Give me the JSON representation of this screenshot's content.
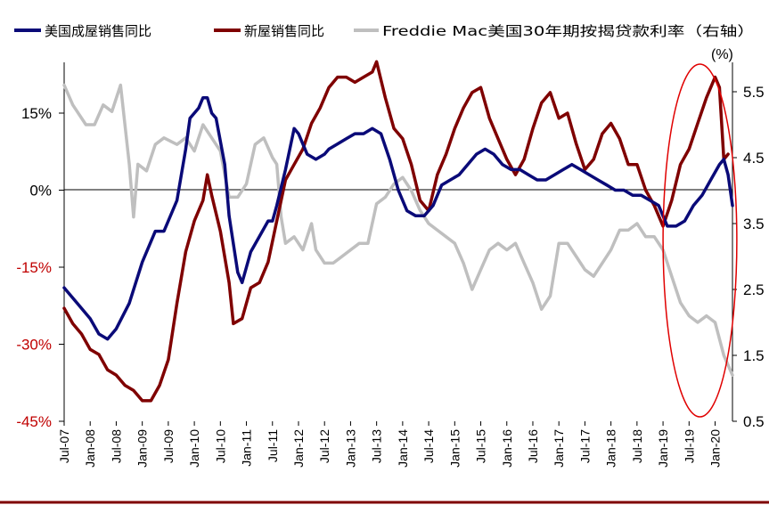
{
  "chart_data": {
    "type": "line",
    "title": "",
    "left_axis": {
      "unit": "",
      "ticks": [
        "15%",
        "0%",
        "-15%",
        "-30%",
        "-45%"
      ],
      "values": [
        15,
        0,
        -15,
        -30,
        -45
      ],
      "ylim": [
        -45,
        15
      ],
      "tick_color": "#c00000"
    },
    "right_axis": {
      "unit": "(%)",
      "ticks": [
        "5.5",
        "4.5",
        "3.5",
        "2.5",
        "1.5",
        "0.5"
      ],
      "values": [
        5.5,
        4.5,
        3.5,
        2.5,
        1.5,
        0.5
      ],
      "ylim": [
        0.5,
        5.5
      ]
    },
    "x_ticks": [
      "Jul-07",
      "Jan-08",
      "Jul-08",
      "Jan-09",
      "Jul-09",
      "Jan-10",
      "Jul-10",
      "Jan-11",
      "Jul-11",
      "Jan-12",
      "Jul-12",
      "Jan-13",
      "Jul-13",
      "Jan-14",
      "Jul-14",
      "Jan-15",
      "Jul-15",
      "Jan-16",
      "Jul-16",
      "Jan-17",
      "Jul-17",
      "Jan-18",
      "Jul-18",
      "Jan-19",
      "Jul-19",
      "Jan-20"
    ],
    "x_start": "2007-07",
    "x_end": "2020-05",
    "grid": false,
    "legend_position": "top",
    "series": [
      {
        "name": "美国成屋销售同比",
        "axis": "left",
        "color": "#0a0a78",
        "values": [
          [
            "2007-07",
            -19
          ],
          [
            "2007-10",
            -22
          ],
          [
            "2008-01",
            -25
          ],
          [
            "2008-03",
            -28
          ],
          [
            "2008-05",
            -29
          ],
          [
            "2008-07",
            -27
          ],
          [
            "2008-10",
            -22
          ],
          [
            "2009-01",
            -14
          ],
          [
            "2009-04",
            -8
          ],
          [
            "2009-06",
            -8
          ],
          [
            "2009-09",
            -2
          ],
          [
            "2009-11",
            8
          ],
          [
            "2009-12",
            14
          ],
          [
            "2010-02",
            16
          ],
          [
            "2010-03",
            18
          ],
          [
            "2010-04",
            18
          ],
          [
            "2010-05",
            15
          ],
          [
            "2010-06",
            14
          ],
          [
            "2010-08",
            5
          ],
          [
            "2010-09",
            -5
          ],
          [
            "2010-11",
            -16
          ],
          [
            "2010-12",
            -18
          ],
          [
            "2011-02",
            -12
          ],
          [
            "2011-04",
            -9
          ],
          [
            "2011-06",
            -6
          ],
          [
            "2011-07",
            -6
          ],
          [
            "2011-08",
            -3
          ],
          [
            "2011-10",
            4
          ],
          [
            "2011-12",
            12
          ],
          [
            "2012-01",
            11
          ],
          [
            "2012-03",
            7
          ],
          [
            "2012-05",
            6
          ],
          [
            "2012-07",
            7
          ],
          [
            "2012-08",
            8
          ],
          [
            "2012-10",
            9
          ],
          [
            "2012-12",
            10
          ],
          [
            "2013-02",
            11
          ],
          [
            "2013-04",
            11
          ],
          [
            "2013-06",
            12
          ],
          [
            "2013-08",
            11
          ],
          [
            "2013-10",
            6
          ],
          [
            "2013-12",
            0
          ],
          [
            "2014-02",
            -4
          ],
          [
            "2014-04",
            -5
          ],
          [
            "2014-06",
            -5
          ],
          [
            "2014-08",
            -3
          ],
          [
            "2014-10",
            1
          ],
          [
            "2014-12",
            2
          ],
          [
            "2015-02",
            3
          ],
          [
            "2015-04",
            5
          ],
          [
            "2015-06",
            7
          ],
          [
            "2015-08",
            8
          ],
          [
            "2015-10",
            7
          ],
          [
            "2015-12",
            5
          ],
          [
            "2016-02",
            4
          ],
          [
            "2016-04",
            4
          ],
          [
            "2016-06",
            3
          ],
          [
            "2016-08",
            2
          ],
          [
            "2016-10",
            2
          ],
          [
            "2016-12",
            3
          ],
          [
            "2017-02",
            4
          ],
          [
            "2017-04",
            5
          ],
          [
            "2017-06",
            4
          ],
          [
            "2017-08",
            3
          ],
          [
            "2017-10",
            2
          ],
          [
            "2017-12",
            1
          ],
          [
            "2018-02",
            0
          ],
          [
            "2018-04",
            0
          ],
          [
            "2018-06",
            -1
          ],
          [
            "2018-08",
            -1
          ],
          [
            "2018-10",
            -2
          ],
          [
            "2018-12",
            -3
          ],
          [
            "2019-02",
            -7
          ],
          [
            "2019-04",
            -7
          ],
          [
            "2019-06",
            -6
          ],
          [
            "2019-08",
            -3
          ],
          [
            "2019-10",
            -1
          ],
          [
            "2019-12",
            2
          ],
          [
            "2020-02",
            5
          ],
          [
            "2020-03",
            6
          ],
          [
            "2020-04",
            3
          ],
          [
            "2020-05",
            -3
          ]
        ]
      },
      {
        "name": "新屋销售同比",
        "axis": "left",
        "color": "#7f0000",
        "values": [
          [
            "2007-07",
            -23
          ],
          [
            "2007-09",
            -26
          ],
          [
            "2007-11",
            -28
          ],
          [
            "2008-01",
            -31
          ],
          [
            "2008-03",
            -32
          ],
          [
            "2008-05",
            -35
          ],
          [
            "2008-07",
            -36
          ],
          [
            "2008-09",
            -38
          ],
          [
            "2008-11",
            -39
          ],
          [
            "2009-01",
            -41
          ],
          [
            "2009-03",
            -41
          ],
          [
            "2009-05",
            -38
          ],
          [
            "2009-07",
            -33
          ],
          [
            "2009-09",
            -22
          ],
          [
            "2009-11",
            -12
          ],
          [
            "2010-01",
            -6
          ],
          [
            "2010-03",
            -2
          ],
          [
            "2010-04",
            3
          ],
          [
            "2010-05",
            -1
          ],
          [
            "2010-07",
            -8
          ],
          [
            "2010-09",
            -18
          ],
          [
            "2010-10",
            -26
          ],
          [
            "2010-12",
            -25
          ],
          [
            "2011-02",
            -19
          ],
          [
            "2011-04",
            -18
          ],
          [
            "2011-06",
            -14
          ],
          [
            "2011-08",
            -6
          ],
          [
            "2011-10",
            2
          ],
          [
            "2011-12",
            5
          ],
          [
            "2012-02",
            8
          ],
          [
            "2012-04",
            13
          ],
          [
            "2012-06",
            16
          ],
          [
            "2012-08",
            20
          ],
          [
            "2012-10",
            22
          ],
          [
            "2012-12",
            22
          ],
          [
            "2013-02",
            21
          ],
          [
            "2013-04",
            22
          ],
          [
            "2013-06",
            23
          ],
          [
            "2013-07",
            25
          ],
          [
            "2013-09",
            18
          ],
          [
            "2013-11",
            12
          ],
          [
            "2014-01",
            10
          ],
          [
            "2014-03",
            5
          ],
          [
            "2014-05",
            -2
          ],
          [
            "2014-07",
            -4
          ],
          [
            "2014-09",
            3
          ],
          [
            "2014-11",
            7
          ],
          [
            "2015-01",
            12
          ],
          [
            "2015-03",
            16
          ],
          [
            "2015-05",
            19
          ],
          [
            "2015-07",
            20
          ],
          [
            "2015-09",
            14
          ],
          [
            "2015-11",
            10
          ],
          [
            "2016-01",
            6
          ],
          [
            "2016-03",
            3
          ],
          [
            "2016-05",
            6
          ],
          [
            "2016-07",
            12
          ],
          [
            "2016-09",
            17
          ],
          [
            "2016-11",
            19
          ],
          [
            "2017-01",
            14
          ],
          [
            "2017-03",
            15
          ],
          [
            "2017-05",
            9
          ],
          [
            "2017-07",
            4
          ],
          [
            "2017-09",
            6
          ],
          [
            "2017-11",
            11
          ],
          [
            "2018-01",
            13
          ],
          [
            "2018-03",
            10
          ],
          [
            "2018-05",
            5
          ],
          [
            "2018-07",
            5
          ],
          [
            "2018-09",
            0
          ],
          [
            "2018-11",
            -3
          ],
          [
            "2019-01",
            -7
          ],
          [
            "2019-03",
            -2
          ],
          [
            "2019-05",
            5
          ],
          [
            "2019-07",
            8
          ],
          [
            "2019-09",
            13
          ],
          [
            "2019-11",
            18
          ],
          [
            "2020-01",
            22
          ],
          [
            "2020-02",
            20
          ],
          [
            "2020-03",
            6
          ],
          [
            "2020-04",
            7
          ]
        ]
      },
      {
        "name": "Freddie Mac美国30年期按揭贷款利率（右轴）",
        "axis": "right",
        "color": "#bfbfbf",
        "values": [
          [
            "2007-07",
            5.6
          ],
          [
            "2007-09",
            5.3
          ],
          [
            "2007-12",
            5.0
          ],
          [
            "2008-02",
            5.0
          ],
          [
            "2008-04",
            5.3
          ],
          [
            "2008-06",
            5.2
          ],
          [
            "2008-08",
            5.6
          ],
          [
            "2008-10",
            4.4
          ],
          [
            "2008-11",
            3.6
          ],
          [
            "2008-12",
            4.4
          ],
          [
            "2009-02",
            4.3
          ],
          [
            "2009-04",
            4.7
          ],
          [
            "2009-06",
            4.8
          ],
          [
            "2009-09",
            4.7
          ],
          [
            "2009-11",
            4.8
          ],
          [
            "2010-01",
            4.6
          ],
          [
            "2010-03",
            5.0
          ],
          [
            "2010-05",
            4.8
          ],
          [
            "2010-07",
            4.6
          ],
          [
            "2010-09",
            3.9
          ],
          [
            "2010-11",
            3.9
          ],
          [
            "2011-01",
            4.1
          ],
          [
            "2011-03",
            4.7
          ],
          [
            "2011-05",
            4.8
          ],
          [
            "2011-07",
            4.5
          ],
          [
            "2011-08",
            4.4
          ],
          [
            "2011-09",
            3.6
          ],
          [
            "2011-10",
            3.2
          ],
          [
            "2011-12",
            3.3
          ],
          [
            "2012-02",
            3.1
          ],
          [
            "2012-04",
            3.5
          ],
          [
            "2012-05",
            3.1
          ],
          [
            "2012-07",
            2.9
          ],
          [
            "2012-09",
            2.9
          ],
          [
            "2012-11",
            3.0
          ],
          [
            "2013-01",
            3.1
          ],
          [
            "2013-03",
            3.2
          ],
          [
            "2013-05",
            3.2
          ],
          [
            "2013-07",
            3.8
          ],
          [
            "2013-09",
            3.9
          ],
          [
            "2013-11",
            4.1
          ],
          [
            "2014-01",
            4.2
          ],
          [
            "2014-03",
            4.0
          ],
          [
            "2014-05",
            3.7
          ],
          [
            "2014-07",
            3.5
          ],
          [
            "2014-09",
            3.4
          ],
          [
            "2014-11",
            3.3
          ],
          [
            "2015-01",
            3.2
          ],
          [
            "2015-03",
            2.9
          ],
          [
            "2015-05",
            2.5
          ],
          [
            "2015-07",
            2.8
          ],
          [
            "2015-09",
            3.1
          ],
          [
            "2015-11",
            3.2
          ],
          [
            "2016-01",
            3.1
          ],
          [
            "2016-03",
            3.2
          ],
          [
            "2016-05",
            2.9
          ],
          [
            "2016-07",
            2.6
          ],
          [
            "2016-09",
            2.2
          ],
          [
            "2016-11",
            2.4
          ],
          [
            "2017-01",
            3.2
          ],
          [
            "2017-03",
            3.2
          ],
          [
            "2017-05",
            3.0
          ],
          [
            "2017-07",
            2.8
          ],
          [
            "2017-09",
            2.7
          ],
          [
            "2017-11",
            2.9
          ],
          [
            "2018-01",
            3.1
          ],
          [
            "2018-03",
            3.4
          ],
          [
            "2018-05",
            3.4
          ],
          [
            "2018-07",
            3.5
          ],
          [
            "2018-09",
            3.3
          ],
          [
            "2018-11",
            3.3
          ],
          [
            "2019-01",
            3.1
          ],
          [
            "2019-03",
            2.7
          ],
          [
            "2019-05",
            2.3
          ],
          [
            "2019-07",
            2.1
          ],
          [
            "2019-09",
            2.0
          ],
          [
            "2019-11",
            2.1
          ],
          [
            "2020-01",
            2.0
          ],
          [
            "2020-03",
            1.5
          ],
          [
            "2020-05",
            1.2
          ]
        ]
      }
    ],
    "annotations": [
      {
        "type": "ellipse",
        "color": "#e00000",
        "from": "2019-01",
        "to": "2020-06"
      }
    ]
  }
}
